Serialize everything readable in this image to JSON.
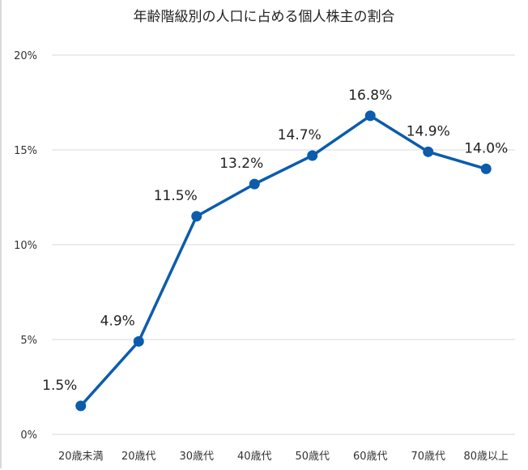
{
  "chart_data": {
    "type": "line",
    "title": "年齢階級別の人口に占める個人株主の割合",
    "xlabel": "",
    "ylabel": "",
    "categories": [
      "20歳未満",
      "20歳代",
      "30歳代",
      "40歳代",
      "50歳代",
      "60歳代",
      "70歳代",
      "80歳以上"
    ],
    "series": [
      {
        "name": "個人株主の割合",
        "values": [
          1.5,
          4.9,
          11.5,
          13.2,
          14.7,
          16.8,
          14.9,
          14.0
        ],
        "color": "#0B5CAD"
      }
    ],
    "data_labels": [
      "1.5%",
      "4.9%",
      "11.5%",
      "13.2%",
      "14.7%",
      "16.8%",
      "14.9%",
      "14.0%"
    ],
    "ylim": [
      0,
      20
    ],
    "yticks": [
      0,
      5,
      10,
      15,
      20
    ],
    "ytick_labels": [
      "0%",
      "5%",
      "10%",
      "15%",
      "20%"
    ],
    "grid": true,
    "legend": "none"
  }
}
